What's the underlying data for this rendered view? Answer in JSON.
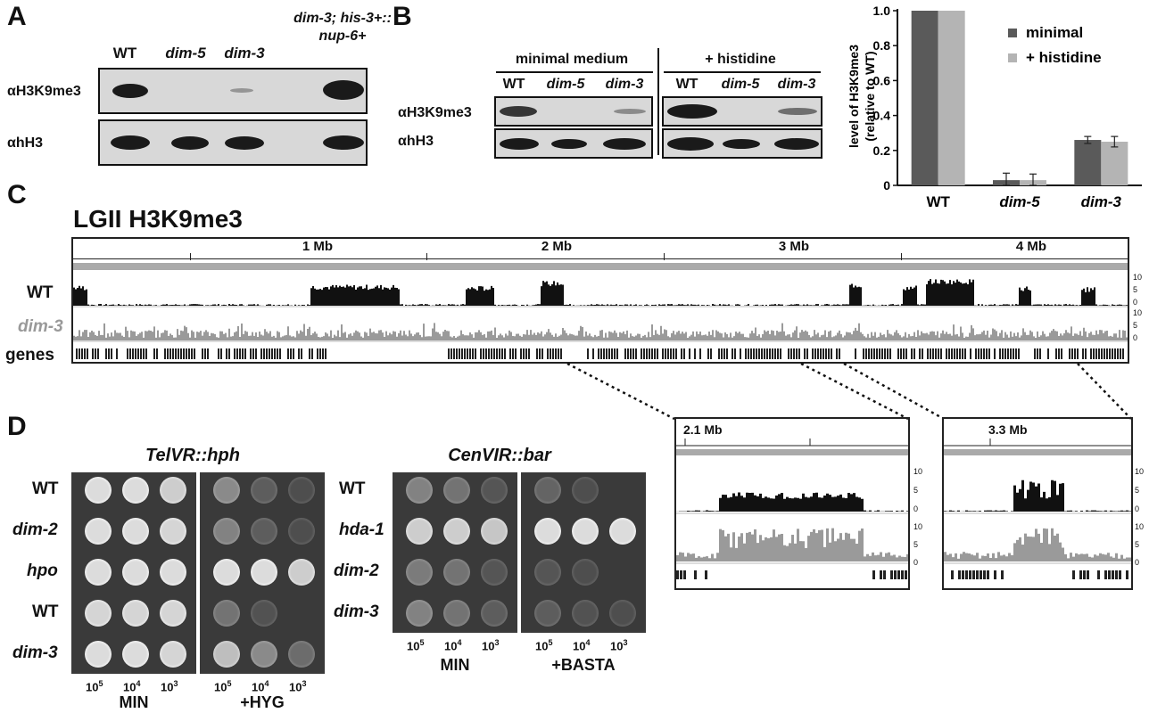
{
  "panel_a": {
    "label": "A",
    "lanes": [
      "WT",
      "dim-5",
      "dim-3",
      "dim-3; his-3+::",
      "nup-6+"
    ],
    "rows": [
      "αH3K9me3",
      "αhH3"
    ]
  },
  "panel_b": {
    "label": "B",
    "group1": "minimal medium",
    "group2": "+ histidine",
    "lanes": [
      "WT",
      "dim-5",
      "dim-3",
      "WT",
      "dim-5",
      "dim-3"
    ],
    "rows": [
      "αH3K9me3",
      "αhH3"
    ]
  },
  "chart_data": {
    "type": "bar",
    "categories": [
      "WT",
      "dim-5",
      "dim-3"
    ],
    "series": [
      {
        "name": "minimal",
        "values": [
          1.0,
          0.03,
          0.26
        ],
        "errors": [
          0,
          0.04,
          0.02
        ],
        "color": "#5a5a5a"
      },
      {
        "name": "+ histidine",
        "values": [
          1.0,
          0.03,
          0.25
        ],
        "errors": [
          0,
          0.035,
          0.03
        ],
        "color": "#b4b4b4"
      }
    ],
    "ylabel_line1": "level of H3K9me3",
    "ylabel_line2": "(relative to WT)",
    "ylim": [
      0,
      1.0
    ],
    "yticks": [
      "0",
      "0.2",
      "0.4",
      "0.6",
      "0.8",
      "1.0"
    ],
    "legend_position": "top-right"
  },
  "panel_c": {
    "label": "C",
    "title": "LGII H3K9me3",
    "ruler": [
      "1 Mb",
      "2 Mb",
      "3 Mb",
      "4 Mb"
    ],
    "tracks": [
      "WT",
      "dim-3",
      "genes"
    ],
    "scale": [
      "10",
      "5",
      "0"
    ],
    "zoom1_label": "2.1 Mb",
    "zoom2_label": "3.3 Mb"
  },
  "panel_d": {
    "label": "D",
    "left_title": "TelVR::hph",
    "left_rows": [
      "WT",
      "dim-2",
      "hpo",
      "WT",
      "dim-3"
    ],
    "left_conditions": [
      "MIN",
      "+HYG"
    ],
    "right_title": "CenVIR::bar",
    "right_rows": [
      "WT",
      "hda-1",
      "dim-2",
      "dim-3"
    ],
    "right_conditions": [
      "MIN",
      "+BASTA"
    ],
    "dilutions": [
      "10",
      "10",
      "10"
    ],
    "exponents": [
      "5",
      "4",
      "3"
    ]
  }
}
